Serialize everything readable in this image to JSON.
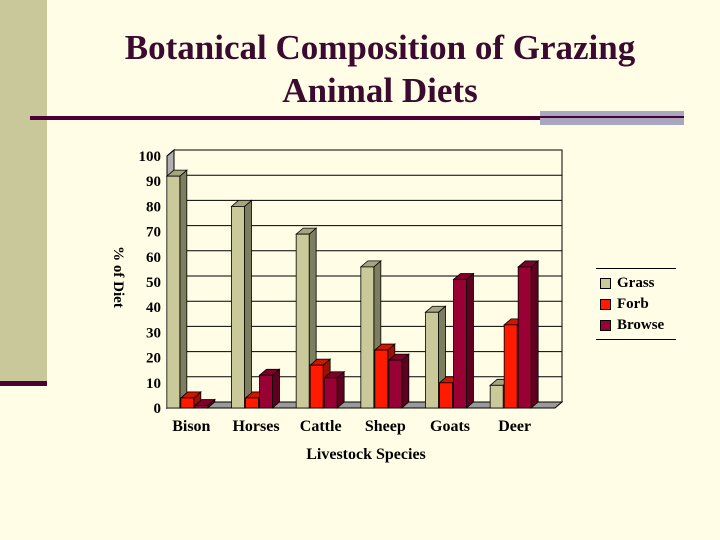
{
  "slide": {
    "title_line1": "Botanical Composition of Grazing",
    "title_line2": "Animal Diets"
  },
  "colors": {
    "Grass": "#c9c99a",
    "Forb": "#ff1a00",
    "Browse": "#990033"
  },
  "chart_data": {
    "type": "bar",
    "title": "",
    "xlabel": "Livestock Species",
    "ylabel": "% of Diet",
    "ylim": [
      0,
      100
    ],
    "yticks": [
      "0",
      "10",
      "20",
      "30",
      "40",
      "50",
      "60",
      "70",
      "80",
      "90",
      "100"
    ],
    "categories": [
      "Bison",
      "Horses",
      "Cattle",
      "Sheep",
      "Goats",
      "Deer"
    ],
    "series": [
      {
        "name": "Grass",
        "values": [
          92,
          80,
          69,
          56,
          38,
          9
        ]
      },
      {
        "name": "Forb",
        "values": [
          4,
          4,
          17,
          23,
          10,
          33
        ]
      },
      {
        "name": "Browse",
        "values": [
          1,
          13,
          12,
          19,
          51,
          56
        ]
      }
    ],
    "legend_position": "right"
  }
}
